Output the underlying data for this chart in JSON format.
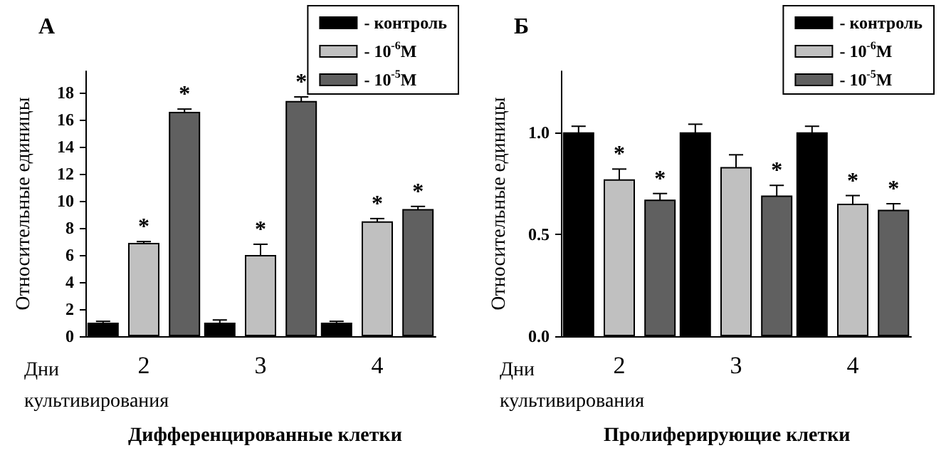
{
  "chart_data": [
    {
      "type": "bar",
      "title": "А",
      "xlabel": "Дни культивирования",
      "ylabel": "Относительные единицы",
      "annotations": [
        "Дифференцированные клетки"
      ],
      "categories": [
        "2",
        "3",
        "4"
      ],
      "legend": "top right",
      "grid": false,
      "ylim": [
        0,
        19.6
      ],
      "yticks": [
        0,
        2,
        4,
        6,
        8,
        10,
        12,
        14,
        16,
        18
      ],
      "series": [
        {
          "name": "- контроль",
          "color": "#000000",
          "values": [
            1.0,
            1.0,
            1.0
          ],
          "errors": [
            0.1,
            0.2,
            0.1
          ]
        },
        {
          "name": "- 10$^{-6}$M",
          "color": "#c0c0c0",
          "values": [
            6.9,
            6.0,
            8.5
          ],
          "errors": [
            0.1,
            0.8,
            0.2
          ],
          "value_labels": [
            "*",
            "*",
            "*"
          ]
        },
        {
          "name": "- 10$^{-5}$M",
          "color": "#606060",
          "values": [
            16.6,
            17.4,
            9.4
          ],
          "errors": [
            0.2,
            0.3,
            0.2
          ],
          "value_labels": [
            "*",
            "*",
            "*"
          ]
        }
      ]
    },
    {
      "type": "bar",
      "title": "Б",
      "xlabel": "Дни культивирования",
      "ylabel": "Относительные единицы",
      "annotations": [
        "Пролиферирующие клетки"
      ],
      "categories": [
        "2",
        "3",
        "4"
      ],
      "legend": "top right",
      "grid": false,
      "ylim": [
        0,
        1.3
      ],
      "yticks": [
        {
          "value": 0,
          "label": "0.0"
        },
        {
          "value": 0.5,
          "label": "0.5"
        },
        {
          "value": 1,
          "label": "1.0"
        }
      ],
      "series": [
        {
          "name": "- контроль",
          "color": "#000000",
          "values": [
            1.0,
            1.0,
            1.0
          ],
          "errors": [
            0.03,
            0.04,
            0.03
          ]
        },
        {
          "name": "- 10$^{-6}$M",
          "color": "#c0c0c0",
          "values": [
            0.77,
            0.83,
            0.65
          ],
          "errors": [
            0.05,
            0.06,
            0.04
          ],
          "value_labels": [
            "*",
            null,
            "*"
          ]
        },
        {
          "name": "- 10$^{-5}$M",
          "color": "#606060",
          "values": [
            0.67,
            0.69,
            0.62
          ],
          "errors": [
            0.03,
            0.05,
            0.03
          ],
          "value_labels": [
            "*",
            "*",
            "*"
          ]
        }
      ]
    }
  ]
}
